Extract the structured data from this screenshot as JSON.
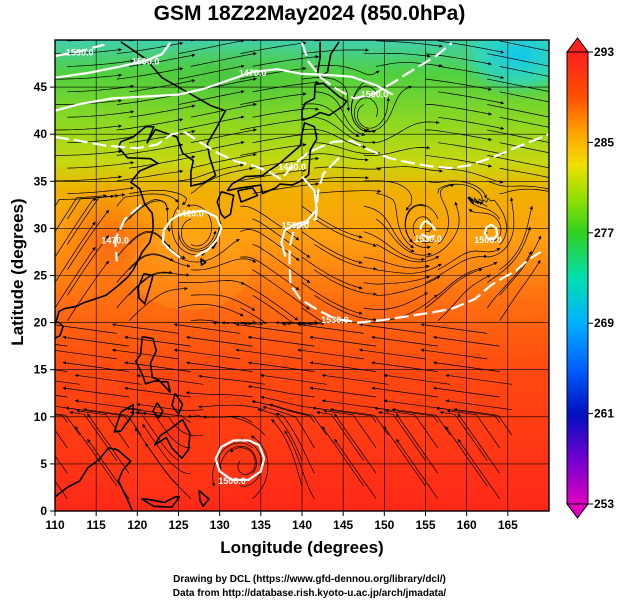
{
  "title": "GSM 18Z22May2024 (850.0hPa)",
  "xlabel": "Longitude (degrees)",
  "ylabel": "Latitude  (degrees)",
  "credits": [
    "Drawing by DCL (https://www.gfd-dennou.org/library/dcl/)",
    "Data from http://database.rish.kyoto-u.ac.jp/arch/jmadata/"
  ],
  "chart_data": {
    "type": "heatmap",
    "xlim": [
      110,
      170
    ],
    "ylim": [
      0,
      50
    ],
    "x_ticks": [
      "110",
      "115",
      "120",
      "125",
      "130",
      "135",
      "140",
      "145",
      "150",
      "155",
      "160",
      "165"
    ],
    "y_ticks": [
      "0",
      "5",
      "10",
      "15",
      "20",
      "25",
      "30",
      "35",
      "40",
      "45"
    ],
    "grid": true,
    "colorbar": {
      "min": 253,
      "max": 293,
      "ticks": [
        "293",
        "285",
        "277",
        "269",
        "261",
        "253"
      ],
      "stops": [
        {
          "value": 253,
          "color": "#e000c0"
        },
        {
          "value": 257,
          "color": "#7000d0"
        },
        {
          "value": 261,
          "color": "#0010c0"
        },
        {
          "value": 265,
          "color": "#0060ff"
        },
        {
          "value": 269,
          "color": "#00b0ff"
        },
        {
          "value": 273,
          "color": "#00e0b0"
        },
        {
          "value": 277,
          "color": "#30d020"
        },
        {
          "value": 280,
          "color": "#90e000"
        },
        {
          "value": 283,
          "color": "#f0e000"
        },
        {
          "value": 286,
          "color": "#ffa000"
        },
        {
          "value": 289,
          "color": "#ff5000"
        },
        {
          "value": 293,
          "color": "#ff2020"
        }
      ]
    },
    "contour_labels": [
      "1500.0",
      "1500.0",
      "1470.0",
      "1440.0",
      "1410.0",
      "1530.0"
    ],
    "contours": [
      {
        "level": "1530.0",
        "points": [
          [
            110,
            48.3
          ],
          [
            113,
            48.8
          ],
          [
            116,
            49.5
          ]
        ]
      },
      {
        "level": "1500.0",
        "points": [
          [
            110,
            46
          ],
          [
            114,
            46.5
          ],
          [
            118,
            47.2
          ],
          [
            121,
            47.8
          ],
          [
            123,
            48.5
          ],
          [
            124,
            49.7
          ]
        ]
      },
      {
        "level": "1500.0",
        "points": [
          [
            140,
            49.7
          ],
          [
            140.8,
            47.7
          ],
          [
            142.3,
            46
          ],
          [
            144.2,
            44.8
          ],
          [
            146.3,
            43.8
          ],
          [
            148.8,
            44.3
          ],
          [
            151.3,
            45.6
          ],
          [
            153.8,
            47
          ],
          [
            156.3,
            48.3
          ],
          [
            158.2,
            49.7
          ]
        ]
      },
      {
        "level": "1470.0",
        "points": [
          [
            110,
            42.5
          ],
          [
            113,
            43.2
          ],
          [
            117,
            43.8
          ],
          [
            121,
            44
          ],
          [
            125,
            44.2
          ],
          [
            128,
            44.8
          ],
          [
            131,
            45.7
          ],
          [
            134,
            46.6
          ],
          [
            137,
            46.9
          ],
          [
            140,
            46.4
          ],
          [
            143,
            46.3
          ],
          [
            146,
            46.1
          ],
          [
            149,
            45.2
          ],
          [
            151,
            44.2
          ]
        ]
      },
      {
        "level": "1440.0",
        "points": [
          [
            110,
            39.7
          ],
          [
            113,
            39.3
          ],
          [
            116,
            38.8
          ],
          [
            120,
            38.5
          ],
          [
            122.4,
            38.9
          ],
          [
            124.2,
            40
          ],
          [
            125.8,
            40.2
          ],
          [
            127.5,
            39.2
          ],
          [
            130,
            37.9
          ],
          [
            132,
            37.1
          ],
          [
            134,
            36.7
          ],
          [
            136,
            36
          ],
          [
            137.5,
            35.2
          ],
          [
            138.8,
            36.6
          ],
          [
            140.7,
            38
          ],
          [
            142.1,
            38.6
          ],
          [
            143.9,
            39.2
          ],
          [
            146,
            39.3
          ],
          [
            147.7,
            38.5
          ],
          [
            150.5,
            37.5
          ],
          [
            153,
            37
          ],
          [
            155.5,
            36.6
          ],
          [
            158,
            36.4
          ],
          [
            160.3,
            36.7
          ],
          [
            163,
            37.5
          ],
          [
            166,
            38.6
          ],
          [
            170,
            40
          ]
        ]
      },
      {
        "level": "1410.0",
        "points": [
          [
            125.2,
            26.9
          ],
          [
            124,
            27.7
          ],
          [
            123.1,
            28.5
          ],
          [
            123.2,
            29.8
          ],
          [
            124.1,
            30.9
          ],
          [
            125,
            31.4
          ],
          [
            126.4,
            31.7
          ],
          [
            128,
            31.9
          ],
          [
            129.6,
            31.2
          ],
          [
            130.2,
            30
          ],
          [
            129.7,
            28.8
          ],
          [
            128.5,
            27.7
          ],
          [
            127,
            27
          ]
        ]
      },
      {
        "level": "1530.0",
        "points": [
          [
            155,
            30.8
          ],
          [
            155.7,
            30.4
          ],
          [
            156.2,
            29.8
          ],
          [
            156,
            29.2
          ],
          [
            155.3,
            29
          ],
          [
            154.6,
            29.4
          ],
          [
            154.4,
            30.1
          ],
          [
            154.7,
            30.6
          ],
          [
            155,
            30.8
          ]
        ]
      },
      {
        "level": "1500.0",
        "points": [
          [
            163,
            30.4
          ],
          [
            163.6,
            30
          ],
          [
            163.7,
            29.3
          ],
          [
            163.2,
            28.8
          ],
          [
            162.6,
            28.9
          ],
          [
            162.2,
            29.5
          ],
          [
            162.4,
            30.1
          ],
          [
            163,
            30.4
          ]
        ]
      },
      {
        "level": "1470.0",
        "points": [
          [
            120.5,
            32.5
          ],
          [
            118.5,
            31
          ],
          [
            117.3,
            28.8
          ],
          [
            117.5,
            26.5
          ]
        ]
      },
      {
        "level": "1500.0",
        "points": [
          [
            140,
            35.5
          ],
          [
            141.5,
            34
          ],
          [
            141.8,
            32
          ],
          [
            140.6,
            30.8
          ],
          [
            139.2,
            30.4
          ],
          [
            137.9,
            29.8
          ],
          [
            137.5,
            28.5
          ],
          [
            138,
            27
          ]
        ]
      },
      {
        "level": "1530.0",
        "points": [
          [
            144.5,
            37.5
          ],
          [
            142.6,
            35.8
          ],
          [
            142,
            34.2
          ],
          [
            141.8,
            32.5
          ],
          [
            141.7,
            31
          ],
          [
            140.3,
            30.5
          ],
          [
            139,
            29.8
          ],
          [
            138.5,
            28
          ],
          [
            138.5,
            26
          ],
          [
            138.6,
            24
          ],
          [
            139.8,
            22.5
          ],
          [
            141.8,
            21.4
          ],
          [
            144,
            20.4
          ],
          [
            147,
            20
          ],
          [
            150,
            20.3
          ],
          [
            153,
            20.7
          ],
          [
            156,
            21.1
          ],
          [
            158.3,
            21.5
          ],
          [
            161,
            22.5
          ],
          [
            163,
            24
          ],
          [
            164.5,
            24.8
          ],
          [
            166,
            25.5
          ],
          [
            167.5,
            26.7
          ],
          [
            169,
            27.5
          ]
        ]
      },
      {
        "level": "1500.0",
        "points": [
          [
            133.5,
            7.5
          ],
          [
            131.7,
            7.5
          ],
          [
            130.2,
            6.8
          ],
          [
            129.5,
            5.5
          ],
          [
            130,
            4.2
          ],
          [
            131.5,
            3.3
          ],
          [
            133.5,
            3.3
          ],
          [
            135,
            4.2
          ],
          [
            135.4,
            5.6
          ],
          [
            134.8,
            7
          ],
          [
            133.5,
            7.5
          ]
        ]
      }
    ]
  }
}
